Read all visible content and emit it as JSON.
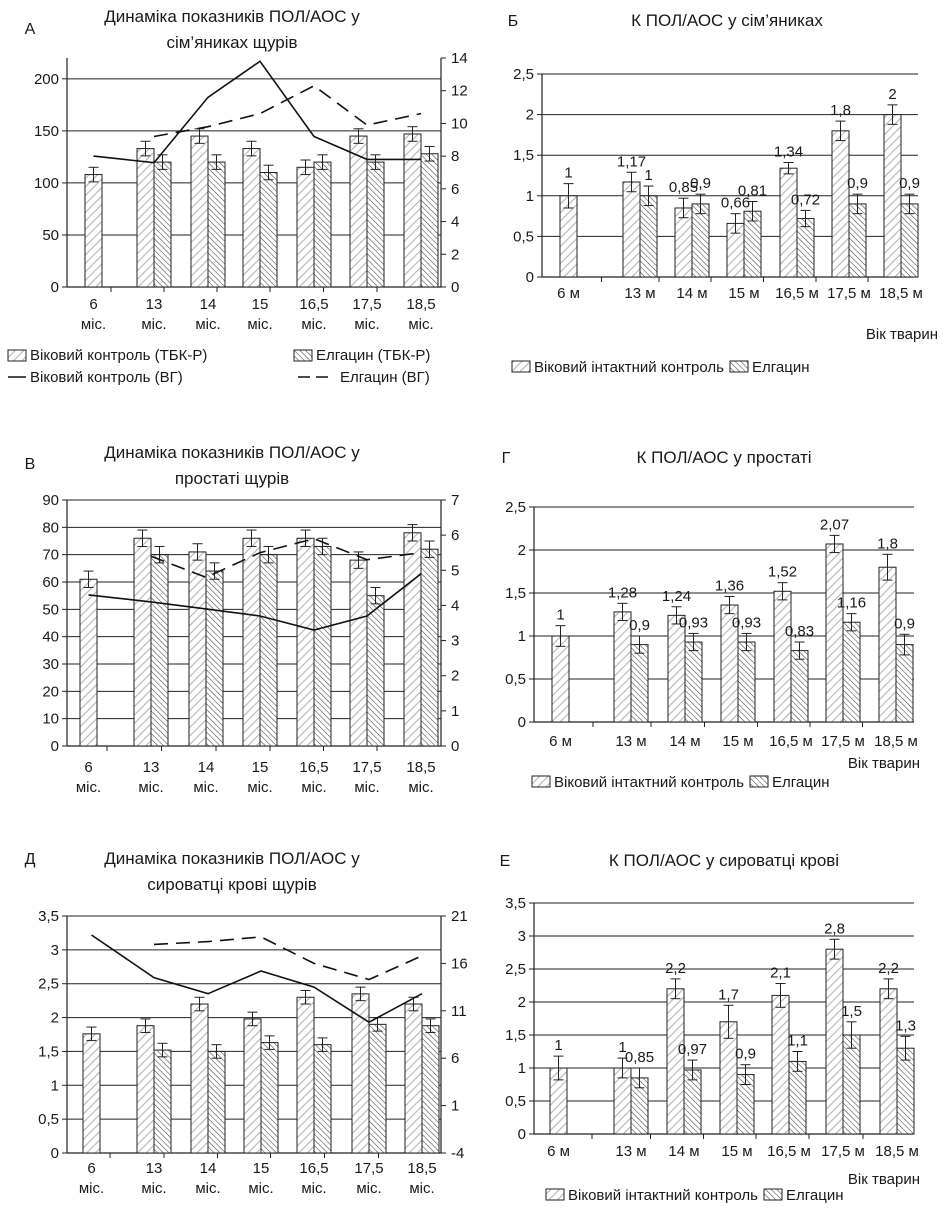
{
  "chart_data": [
    {
      "type": "bar",
      "letter": "А",
      "title": "Динаміка показників ПОЛ/АОС у сім’яниках щурів",
      "title_lines": [
        "Динаміка показників ПОЛ/АОС у",
        "сім’яниках щурів"
      ],
      "categories": [
        [
          "6",
          "міс."
        ],
        [
          "13",
          "міс."
        ],
        [
          "14",
          "міс."
        ],
        [
          "15",
          "міс."
        ],
        [
          "16,5",
          "міс."
        ],
        [
          "17,5",
          "міс."
        ],
        [
          "18,5",
          "міс."
        ]
      ],
      "ylim": [
        0,
        220
      ],
      "yticks": [
        "0",
        "50",
        "100",
        "150",
        "200"
      ],
      "ylim_right": [
        0,
        14
      ],
      "yticks_right": [
        "0",
        "2",
        "4",
        "6",
        "8",
        "10",
        "12",
        "14"
      ],
      "series": [
        {
          "name": "Віковий контроль (ТБК-Р)",
          "values": [
            108,
            133,
            145,
            133,
            115,
            145,
            147
          ],
          "err": [
            7,
            7,
            7,
            7,
            7,
            7,
            7
          ]
        },
        {
          "name": "Елгацин (ТБК-Р)",
          "values": [
            null,
            120,
            120,
            110,
            120,
            120,
            128
          ],
          "err": [
            null,
            7,
            7,
            7,
            7,
            7,
            7
          ]
        }
      ],
      "lines": [
        {
          "name": "Віковий контроль (ВГ)",
          "style": "solid",
          "values": [
            8.0,
            7.6,
            11.6,
            13.8,
            9.2,
            7.8,
            7.8
          ]
        },
        {
          "name": "Елгацин (ВГ)",
          "style": "dashed",
          "values": [
            null,
            9.2,
            9.8,
            10.6,
            12.3,
            9.9,
            10.6
          ]
        }
      ]
    },
    {
      "type": "bar",
      "letter": "Б",
      "title": "К ПОЛ/АОС у сім’яниках",
      "title_lines": [
        "К ПОЛ/АОС у сім’яниках"
      ],
      "categories": [
        [
          "6 м"
        ],
        [
          "13 м"
        ],
        [
          "14 м"
        ],
        [
          "15 м"
        ],
        [
          "16,5 м"
        ],
        [
          "17,5 м"
        ],
        [
          "18,5 м"
        ]
      ],
      "ylim": [
        0,
        2.5
      ],
      "yticks": [
        "0",
        "0,5",
        "1",
        "1,5",
        "2",
        "2,5"
      ],
      "xlabel": "Вік тварин",
      "series": [
        {
          "name": "Віковий інтактний контроль",
          "values": [
            1,
            1.17,
            0.85,
            0.66,
            1.34,
            1.8,
            2
          ],
          "labels": [
            "1",
            "1,17",
            "0,85",
            "0,66",
            "1,34",
            "1,8",
            "2"
          ],
          "err": [
            0.15,
            0.12,
            0.12,
            0.12,
            0.07,
            0.12,
            0.12
          ]
        },
        {
          "name": "Елгацин",
          "values": [
            null,
            1,
            0.9,
            0.81,
            0.72,
            0.9,
            0.9
          ],
          "labels": [
            "",
            "1",
            "0,9",
            "0,81",
            "0,72",
            "0,9",
            "0,9"
          ],
          "err": [
            null,
            0.12,
            0.12,
            0.12,
            0.1,
            0.12,
            0.12
          ]
        }
      ]
    },
    {
      "type": "bar",
      "letter": "В",
      "title": "Динаміка показників ПОЛ/АОС у простаті щурів",
      "title_lines": [
        "Динаміка показників ПОЛ/АОС у",
        "простаті щурів"
      ],
      "categories": [
        [
          "6",
          "міс."
        ],
        [
          "13",
          "міс."
        ],
        [
          "14",
          "міс."
        ],
        [
          "15",
          "міс."
        ],
        [
          "16,5",
          "міс."
        ],
        [
          "17,5",
          "міс."
        ],
        [
          "18,5",
          "міс."
        ]
      ],
      "ylim": [
        0,
        90
      ],
      "yticks": [
        "0",
        "10",
        "20",
        "30",
        "40",
        "50",
        "60",
        "70",
        "80",
        "90"
      ],
      "ylim_right": [
        0,
        7
      ],
      "yticks_right": [
        "0",
        "1",
        "2",
        "3",
        "4",
        "5",
        "6",
        "7"
      ],
      "series": [
        {
          "name": "Віковий контроль (ТБК-Р)",
          "values": [
            61,
            76,
            71,
            76,
            76,
            68,
            78
          ],
          "err": [
            3,
            3,
            3,
            3,
            3,
            3,
            3
          ]
        },
        {
          "name": "Елгацин (ТБК-Р)",
          "values": [
            null,
            70,
            64,
            70,
            73,
            55,
            72
          ],
          "err": [
            null,
            3,
            3,
            3,
            3,
            3,
            3
          ]
        }
      ],
      "lines": [
        {
          "name": "Віковий контроль (ВГ)",
          "style": "solid",
          "values": [
            4.3,
            4.1,
            3.9,
            3.7,
            3.3,
            3.7,
            4.9
          ]
        },
        {
          "name": "Елгацин (ВГ)",
          "style": "dashed",
          "values": [
            null,
            5.4,
            4.8,
            5.5,
            5.9,
            5.3,
            5.5
          ]
        }
      ]
    },
    {
      "type": "bar",
      "letter": "Г",
      "title": "К ПОЛ/АОС у простаті",
      "title_lines": [
        "К ПОЛ/АОС у простаті"
      ],
      "categories": [
        [
          "6 м"
        ],
        [
          "13 м"
        ],
        [
          "14 м"
        ],
        [
          "15 м"
        ],
        [
          "16,5 м"
        ],
        [
          "17,5 м"
        ],
        [
          "18,5 м"
        ]
      ],
      "ylim": [
        0,
        2.5
      ],
      "yticks": [
        "0",
        "0,5",
        "1",
        "1,5",
        "2",
        "2,5"
      ],
      "xlabel": "Вік тварин",
      "series": [
        {
          "name": "Віковий інтактний контроль",
          "values": [
            1,
            1.28,
            1.24,
            1.36,
            1.52,
            2.07,
            1.8
          ],
          "labels": [
            "1",
            "1,28",
            "1,24",
            "1,36",
            "1,52",
            "2,07",
            "1,8"
          ],
          "err": [
            0.12,
            0.1,
            0.1,
            0.1,
            0.1,
            0.1,
            0.15
          ]
        },
        {
          "name": "Елгацин",
          "values": [
            null,
            0.9,
            0.93,
            0.93,
            0.83,
            1.16,
            0.9
          ],
          "labels": [
            "",
            "0,9",
            "0,93",
            "0,93",
            "0,83",
            "1,16",
            "0,9"
          ],
          "err": [
            null,
            0.1,
            0.1,
            0.1,
            0.1,
            0.1,
            0.12
          ]
        }
      ]
    },
    {
      "type": "bar",
      "letter": "Д",
      "title": "Динаміка показників ПОЛ/АОС у сироватці крові щурів",
      "title_lines": [
        "Динаміка показників ПОЛ/АОС у",
        "сироватці крові щурів"
      ],
      "categories": [
        [
          "6",
          "міс."
        ],
        [
          "13",
          "міс."
        ],
        [
          "14",
          "міс."
        ],
        [
          "15",
          "міс."
        ],
        [
          "16,5",
          "міс."
        ],
        [
          "17,5",
          "міс."
        ],
        [
          "18,5",
          "міс."
        ]
      ],
      "ylim": [
        0,
        3.5
      ],
      "yticks": [
        "0",
        "0,5",
        "1",
        "1,5",
        "2",
        "2,5",
        "3",
        "3,5"
      ],
      "ylim_right": [
        -4,
        21
      ],
      "yticks_right": [
        "-4",
        "1",
        "6",
        "11",
        "16",
        "21"
      ],
      "series": [
        {
          "name": "Віковий контроль (ТБК-Р)",
          "values": [
            1.76,
            1.88,
            2.2,
            1.98,
            2.3,
            2.35,
            2.2
          ],
          "err": [
            0.1,
            0.1,
            0.1,
            0.1,
            0.1,
            0.1,
            0.1
          ]
        },
        {
          "name": "Елгацин (ТБК-Р)",
          "values": [
            null,
            1.52,
            1.5,
            1.63,
            1.6,
            1.9,
            1.88
          ],
          "err": [
            null,
            0.1,
            0.1,
            0.1,
            0.1,
            0.1,
            0.1
          ]
        }
      ],
      "lines": [
        {
          "name": "Віковий контроль (ВГ)",
          "style": "solid",
          "values": [
            19.0,
            14.5,
            12.8,
            15.2,
            13.5,
            9.8,
            12.8
          ]
        },
        {
          "name": "Елгацин (ВГ)",
          "style": "dashed",
          "values": [
            null,
            18.0,
            18.3,
            18.8,
            16.0,
            14.3,
            16.8
          ]
        }
      ]
    },
    {
      "type": "bar",
      "letter": "Е",
      "title": "К ПОЛ/АОС у сироватці крові",
      "title_lines": [
        "К ПОЛ/АОС у сироватці крові"
      ],
      "categories": [
        [
          "6 м"
        ],
        [
          "13 м"
        ],
        [
          "14 м"
        ],
        [
          "15 м"
        ],
        [
          "16,5 м"
        ],
        [
          "17,5 м"
        ],
        [
          "18,5 м"
        ]
      ],
      "ylim": [
        0,
        3.5
      ],
      "yticks": [
        "0",
        "0,5",
        "1",
        "1,5",
        "2",
        "2,5",
        "3",
        "3,5"
      ],
      "xlabel": "Вік тварин",
      "series": [
        {
          "name": "Віковий інтактний контроль",
          "values": [
            1,
            1,
            2.2,
            1.7,
            2.1,
            2.8,
            2.2
          ],
          "labels": [
            "1",
            "1",
            "2,2",
            "1,7",
            "2,1",
            "2,8",
            "2,2"
          ],
          "err": [
            0.18,
            0.15,
            0.15,
            0.25,
            0.18,
            0.15,
            0.15
          ]
        },
        {
          "name": "Елгацин",
          "values": [
            null,
            0.85,
            0.97,
            0.9,
            1.1,
            1.5,
            1.3
          ],
          "labels": [
            "",
            "0,85",
            "0,97",
            "0,9",
            "1,1",
            "1,5",
            "1,3"
          ],
          "err": [
            null,
            0.15,
            0.15,
            0.15,
            0.15,
            0.2,
            0.18
          ]
        }
      ]
    }
  ],
  "legends": {
    "A": [
      "Віковий контроль (ТБК-Р)",
      "Елгацин (ТБК-Р)",
      "Віковий контроль (ВГ)",
      "Елгацин (ВГ)"
    ],
    "K": [
      "Віковий інтактний контроль",
      "Елгацин"
    ]
  }
}
